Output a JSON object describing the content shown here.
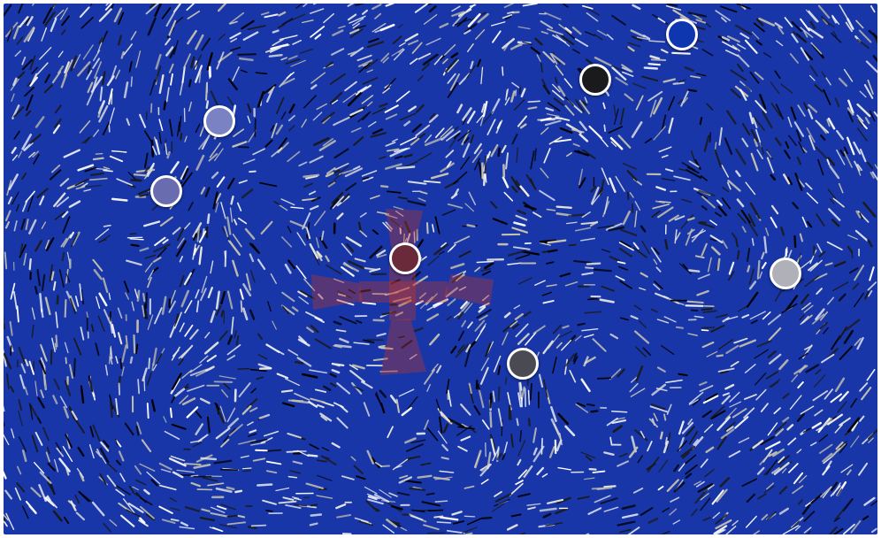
{
  "board": {
    "background_color": "#1836a8",
    "streak_colors": [
      "#ffffff",
      "#e8e8e0",
      "#c8c4b0",
      "#000000",
      "#1a1a1a"
    ],
    "target_marker": {
      "color": "#c0382a",
      "icon": "pinwheel-cross-icon"
    }
  },
  "tokens": [
    {
      "id": "token-blue",
      "color": "#0e36b0"
    },
    {
      "id": "token-black",
      "color": "#1a1a1c"
    },
    {
      "id": "token-periwinkle",
      "color": "#7a82c4"
    },
    {
      "id": "token-lavender",
      "color": "#6a6cb0"
    },
    {
      "id": "token-maroon",
      "color": "#6a2a3a"
    },
    {
      "id": "token-light-gray",
      "color": "#b0b0b8"
    },
    {
      "id": "token-dark-gray",
      "color": "#4a4a52"
    }
  ]
}
